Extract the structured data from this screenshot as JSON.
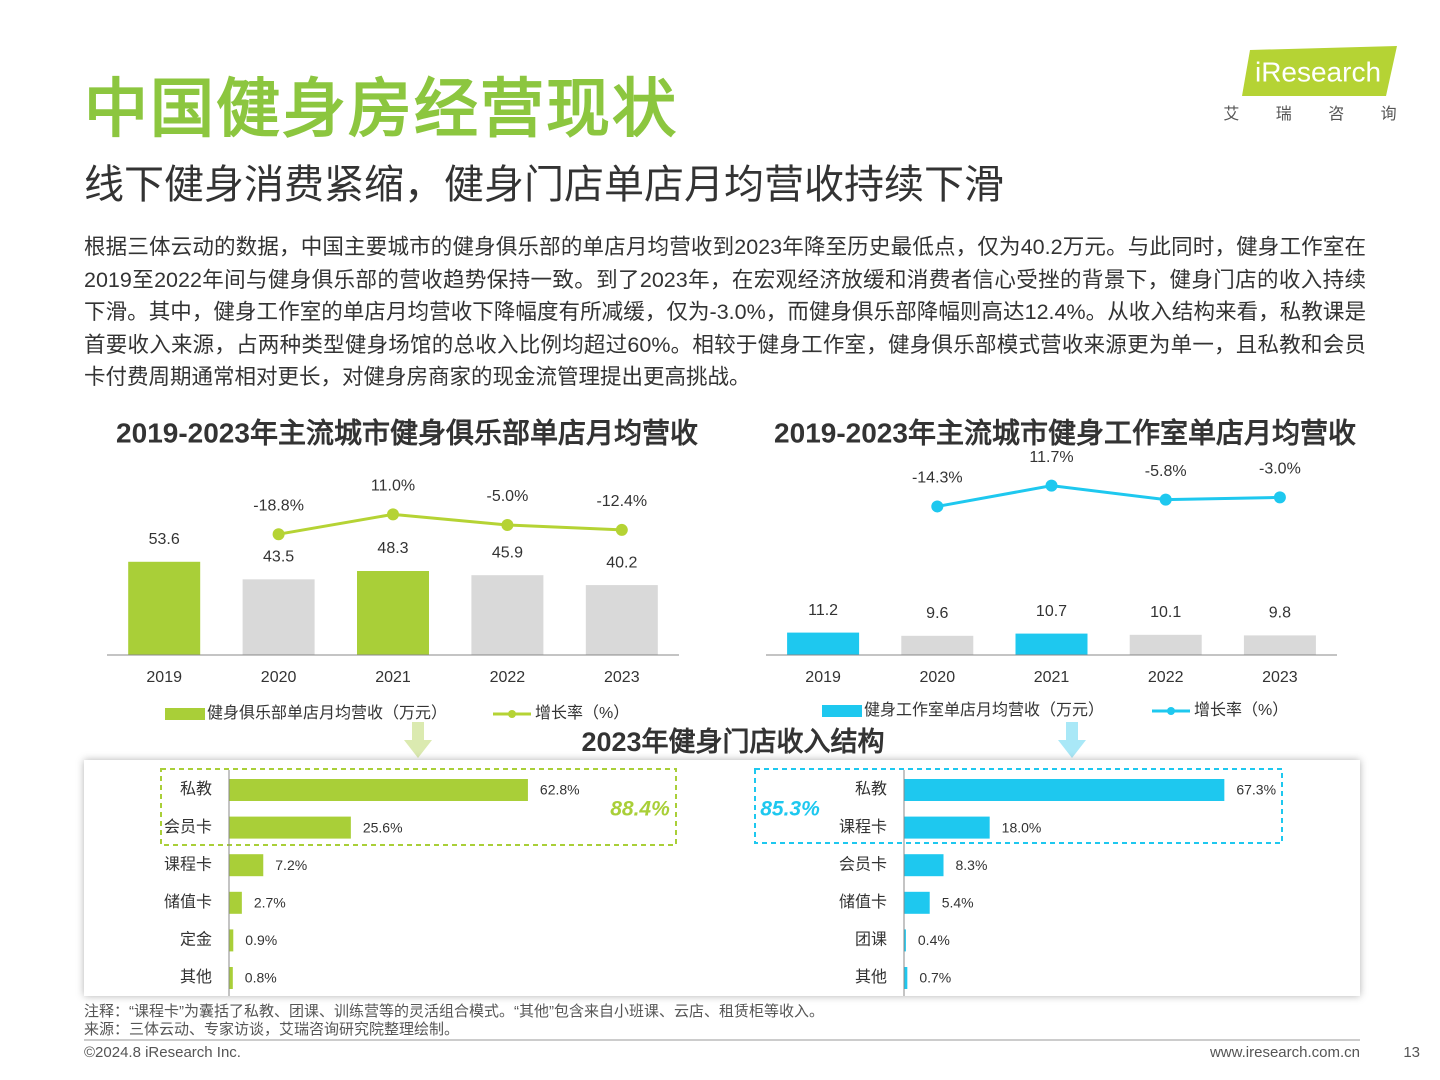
{
  "header": {
    "title": "中国健身房经营现状",
    "subtitle": "线下健身消费紧缩，健身门店单店月均营收持续下滑",
    "logo": "iResearch",
    "logo_cn": "艾 瑞 咨 询"
  },
  "body": "根据三体云动的数据，中国主要城市的健身俱乐部的单店月均营收到2023年降至历史最低点，仅为40.2万元。与此同时，健身工作室在2019至2022年间与健身俱乐部的营收趋势保持一致。到了2023年，在宏观经济放缓和消费者信心受挫的背景下，健身门店的收入持续下滑。其中，健身工作室的单店月均营收下降幅度有所减缓，仅为-3.0%，而健身俱乐部降幅则高达12.4%。从收入结构来看，私教课是首要收入来源，占两种类型健身场馆的总收入比例均超过60%。相较于健身工作室，健身俱乐部模式营收来源更为单一，且私教和会员卡付费周期通常相对更长，对健身房商家的现金流管理提出更高挑战。",
  "chart_data": [
    {
      "type": "bar",
      "title": "2019-2023年主流城市健身俱乐部单店月均营收",
      "categories": [
        "2019",
        "2020",
        "2021",
        "2022",
        "2023"
      ],
      "ylim": [
        0,
        115
      ],
      "y2lim": [
        -200,
        100
      ],
      "series": [
        {
          "name": "健身俱乐部单店月均营收（万元）",
          "color": "#a9cf38",
          "colors": [
            "#a9cf38",
            "#d9d9d9",
            "#a9cf38",
            "#d9d9d9",
            "#d9d9d9"
          ],
          "values": [
            53.6,
            43.5,
            48.3,
            45.9,
            40.2
          ]
        },
        {
          "name": "增长率（%）",
          "type": "line",
          "axis": "y2",
          "color": "#b5d334",
          "values": [
            null,
            -18.8,
            11.0,
            -5.0,
            -12.4
          ],
          "value_labels": [
            null,
            "-18.8%",
            "11.0%",
            "-5.0%",
            "-12.4%"
          ]
        }
      ]
    },
    {
      "type": "bar",
      "title": "2019-2023年主流城市健身工作室单店月均营收",
      "categories": [
        "2019",
        "2020",
        "2021",
        "2022",
        "2023"
      ],
      "ylim": [
        0,
        100
      ],
      "y2lim": [
        -200,
        50
      ],
      "series": [
        {
          "name": "健身工作室单店月均营收（万元）",
          "color": "#1ec8ef",
          "colors": [
            "#1ec8ef",
            "#d9d9d9",
            "#1ec8ef",
            "#d9d9d9",
            "#d9d9d9"
          ],
          "values": [
            11.2,
            9.6,
            10.7,
            10.1,
            9.8
          ]
        },
        {
          "name": "增长率（%）",
          "type": "line",
          "axis": "y2",
          "color": "#1ec8ef",
          "values": [
            null,
            -14.3,
            11.7,
            -5.8,
            -3.0
          ],
          "value_labels": [
            null,
            "-14.3%",
            "11.7%",
            "-5.8%",
            "-3.0%"
          ]
        }
      ]
    },
    {
      "type": "hbar",
      "title": "2023年健身门店收入结构",
      "categories": [
        "私教",
        "会员卡",
        "课程卡",
        "储值卡",
        "定金",
        "其他"
      ],
      "values": [
        62.8,
        25.6,
        7.2,
        2.7,
        0.9,
        0.8
      ],
      "value_labels": [
        "62.8%",
        "25.6%",
        "7.2%",
        "2.7%",
        "0.9%",
        "0.8%"
      ],
      "color": "#a9cf38",
      "xlim": [
        0,
        100
      ],
      "annotation": "88.4%"
    },
    {
      "type": "hbar",
      "categories": [
        "私教",
        "课程卡",
        "会员卡",
        "储值卡",
        "团课",
        "其他"
      ],
      "values": [
        67.3,
        18.0,
        8.3,
        5.4,
        0.4,
        0.7
      ],
      "value_labels": [
        "67.3%",
        "18.0%",
        "8.3%",
        "5.4%",
        "0.4%",
        "0.7%"
      ],
      "color": "#1ec8ef",
      "xlim": [
        0,
        100
      ],
      "annotation": "85.3%"
    }
  ],
  "footer": {
    "note": "注释：“课程卡”为囊括了私教、团课、训练营等的灵活组合模式。“其他”包含来自小班课、云店、租赁柜等收入。",
    "source": "来源：三体云动、专家访谈，艾瑞咨询研究院整理绘制。",
    "copyright": "©2024.8 iResearch Inc.",
    "url": "www.iresearch.com.cn",
    "page": "13"
  }
}
